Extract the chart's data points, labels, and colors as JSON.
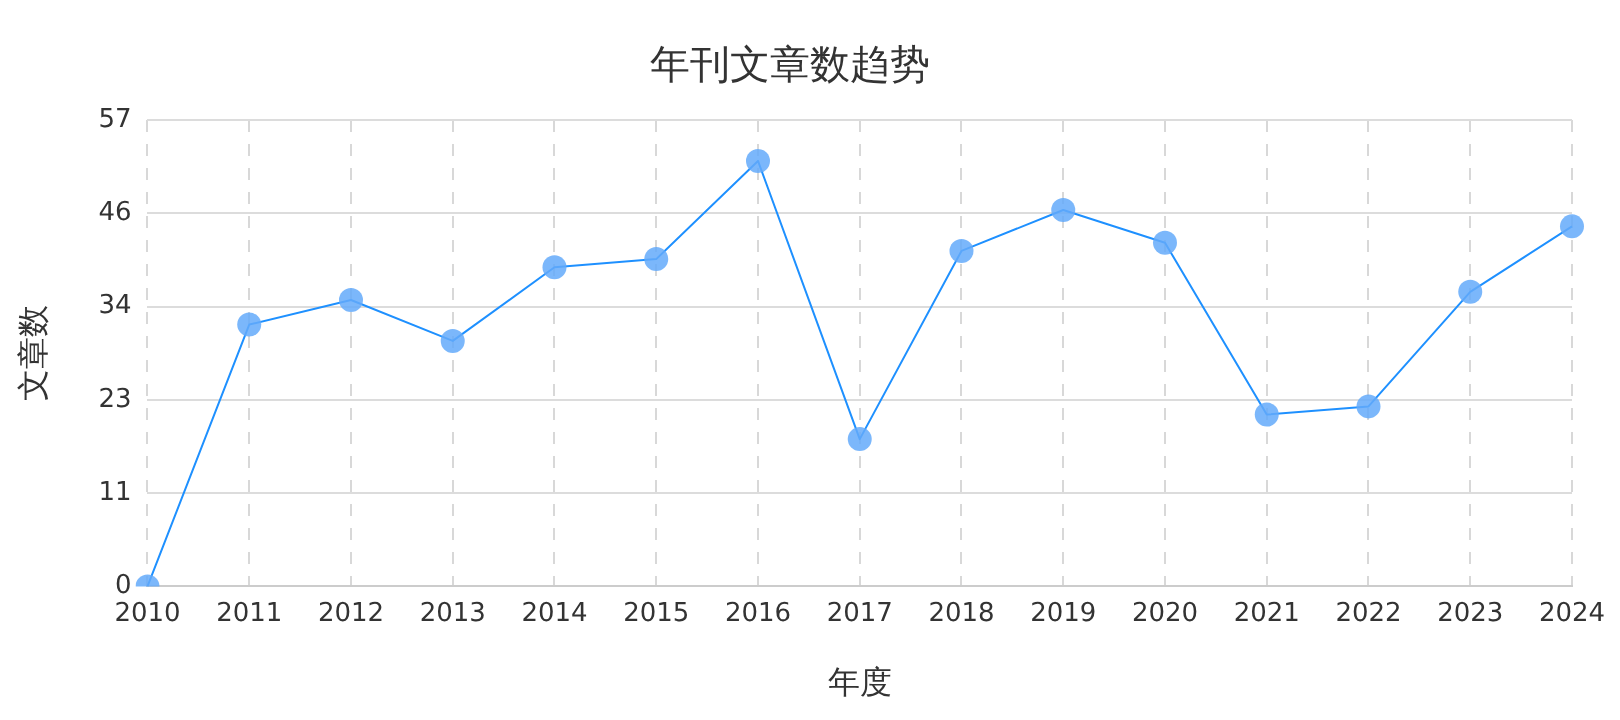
{
  "chart_data": {
    "type": "line",
    "title": "年刊文章数趋势",
    "xlabel": "年度",
    "ylabel": "文章数",
    "categories": [
      "2010",
      "2011",
      "2012",
      "2013",
      "2014",
      "2015",
      "2016",
      "2017",
      "2018",
      "2019",
      "2020",
      "2021",
      "2022",
      "2023",
      "2024"
    ],
    "series": [
      {
        "color": "#1e90ff",
        "values": [
          0,
          32,
          35,
          30,
          39,
          40,
          52,
          18,
          41,
          46,
          42,
          21,
          22,
          36,
          44
        ]
      }
    ],
    "ylim": [
      0,
      57
    ],
    "yticks": [
      0,
      {
        "value": 11.4,
        "label": "11"
      },
      {
        "value": 22.8,
        "label": "23"
      },
      {
        "value": 34.2,
        "label": "34"
      },
      {
        "value": 45.6,
        "label": "46"
      },
      57
    ],
    "grid": true,
    "legend": false,
    "marker": "circle",
    "line_style": "solid"
  }
}
